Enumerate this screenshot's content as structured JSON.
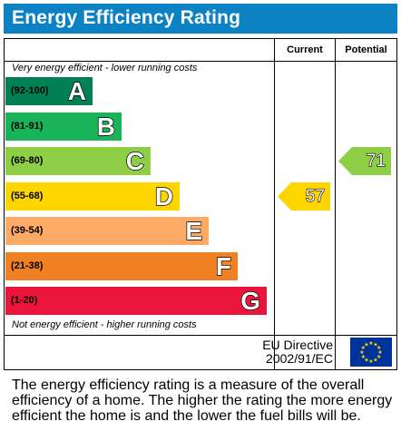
{
  "title": "Energy Efficiency Rating",
  "columns": {
    "current": "Current",
    "potential": "Potential"
  },
  "top_note": "Very energy efficient - lower running costs",
  "bottom_note": "Not energy efficient - higher running costs",
  "chart_data": {
    "type": "bar",
    "bands": [
      {
        "range": "(92-100)",
        "letter": "A",
        "color": "#008054"
      },
      {
        "range": "(81-91)",
        "letter": "B",
        "color": "#19b459"
      },
      {
        "range": "(69-80)",
        "letter": "C",
        "color": "#8dce46"
      },
      {
        "range": "(55-68)",
        "letter": "D",
        "color": "#ffd500"
      },
      {
        "range": "(39-54)",
        "letter": "E",
        "color": "#fcaa65"
      },
      {
        "range": "(21-38)",
        "letter": "F",
        "color": "#ef8023"
      },
      {
        "range": "(1-20)",
        "letter": "G",
        "color": "#e9153b"
      }
    ],
    "current": {
      "value": 57,
      "band": "D",
      "color": "#ffd500"
    },
    "potential": {
      "value": 71,
      "band": "C",
      "color": "#8dce46"
    }
  },
  "eu": {
    "line1": "EU Directive",
    "line2": "2002/91/EC",
    "flag_icon": "eu-flag-icon"
  },
  "footer": "The energy efficiency rating is a measure of the overall efficiency of a home. The higher the rating the more energy efficient the home is and the lower the fuel bills will be."
}
